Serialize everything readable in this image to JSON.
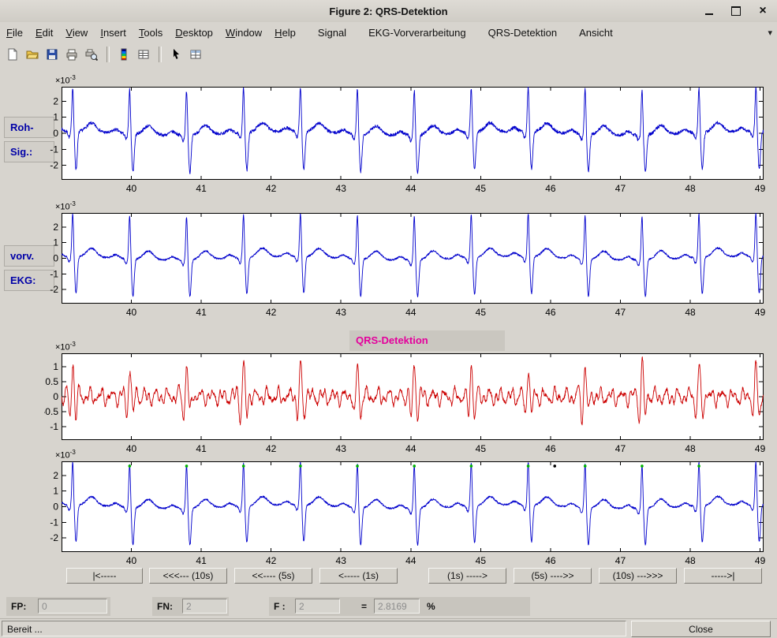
{
  "window": {
    "title": "Figure 2: QRS-Detektion"
  },
  "menu": {
    "items": [
      {
        "label": "File",
        "mnemonic": 0,
        "gap_before": false
      },
      {
        "label": "Edit",
        "mnemonic": 0,
        "gap_before": false
      },
      {
        "label": "View",
        "mnemonic": 0,
        "gap_before": false
      },
      {
        "label": "Insert",
        "mnemonic": 0,
        "gap_before": false
      },
      {
        "label": "Tools",
        "mnemonic": 0,
        "gap_before": false
      },
      {
        "label": "Desktop",
        "mnemonic": 0,
        "gap_before": false
      },
      {
        "label": "Window",
        "mnemonic": 0,
        "gap_before": false
      },
      {
        "label": "Help",
        "mnemonic": 0,
        "gap_before": false
      },
      {
        "label": "Signal",
        "mnemonic": -1,
        "gap_before": true
      },
      {
        "label": "EKG-Vorverarbeitung",
        "mnemonic": -1,
        "gap_before": true
      },
      {
        "label": "QRS-Detektion",
        "mnemonic": -1,
        "gap_before": true
      },
      {
        "label": "Ansicht",
        "mnemonic": -1,
        "gap_before": true
      }
    ]
  },
  "toolbar": {
    "icons": [
      {
        "name": "new-document-icon"
      },
      {
        "name": "open-file-icon"
      },
      {
        "name": "save-figure-icon"
      },
      {
        "name": "print-figure-icon"
      },
      {
        "name": "print-preview-icon"
      },
      {
        "name": "separator"
      },
      {
        "name": "colorbar-icon"
      },
      {
        "name": "data-grid-icon"
      },
      {
        "name": "separator"
      },
      {
        "name": "edit-plot-pointer-icon"
      },
      {
        "name": "property-table-icon"
      }
    ]
  },
  "labels": {
    "raw_line1": "Roh-",
    "raw_line2": "Sig.:",
    "pre_line1": "vorv.",
    "pre_line2": "EKG:",
    "qrs_title": "QRS-Detektion"
  },
  "nav_buttons": [
    {
      "name": "nav-rewind-start-button",
      "label": "|<-----"
    },
    {
      "name": "nav-back-10s-button",
      "label": "<<<--- (10s)"
    },
    {
      "name": "nav-back-5s-button",
      "label": "<<---- (5s)"
    },
    {
      "name": "nav-back-1s-button",
      "label": "<----- (1s)"
    },
    {
      "name": "nav-forward-1s-button",
      "label": "(1s) ----->"
    },
    {
      "name": "nav-forward-5s-button",
      "label": "(5s) ---->>"
    },
    {
      "name": "nav-forward-10s-button",
      "label": "(10s) --->>>"
    },
    {
      "name": "nav-forward-end-button",
      "label": "----->|"
    }
  ],
  "stats": {
    "fp_label": "FP:",
    "fp_value": "0",
    "fn_label": "FN:",
    "fn_value": "2",
    "f_label": "F :",
    "f_value": "2",
    "equals": "=",
    "rate_value": "2.8169",
    "percent_label": "%"
  },
  "statusbar": {
    "text": "Bereit ...",
    "close_label": "Close"
  },
  "chart_data": [
    {
      "type": "line",
      "name": "raw-signal",
      "title": "",
      "color": "#0000cc",
      "x_ticks": [
        40,
        41,
        42,
        43,
        44,
        45,
        46,
        47,
        48,
        49
      ],
      "y_ticks": [
        2,
        1,
        0,
        -1,
        -2
      ],
      "xlim": [
        39.0,
        49.05
      ],
      "ylim": [
        -2.9,
        2.9
      ],
      "y_unit": "1e-3",
      "exp_base": "×10",
      "exp_power": "-3",
      "signal": "ecg",
      "noise": 0.1,
      "seed": 7,
      "beats": [
        39.16,
        39.975,
        40.79,
        41.605,
        42.42,
        43.235,
        44.05,
        44.865,
        45.68,
        46.495,
        47.31,
        48.125,
        48.94
      ]
    },
    {
      "type": "line",
      "name": "preprocessed-ekg",
      "title": "",
      "color": "#0000cc",
      "x_ticks": [
        40,
        41,
        42,
        43,
        44,
        45,
        46,
        47,
        48,
        49
      ],
      "y_ticks": [
        2,
        1,
        0,
        -1,
        -2
      ],
      "xlim": [
        39.0,
        49.05
      ],
      "ylim": [
        -2.9,
        2.9
      ],
      "y_unit": "1e-3",
      "exp_base": "×10",
      "exp_power": "-3",
      "signal": "ecg",
      "noise": 0.06,
      "seed": 19,
      "beats": [
        39.16,
        39.975,
        40.79,
        41.605,
        42.42,
        43.235,
        44.05,
        44.865,
        45.68,
        46.495,
        47.31,
        48.125,
        48.94
      ]
    },
    {
      "type": "line",
      "name": "qrs-filtered-signal",
      "title": "QRS-Detektion",
      "color": "#cc0000",
      "x_ticks": [
        40,
        41,
        42,
        43,
        44,
        45,
        46,
        47,
        48,
        49
      ],
      "y_ticks": [
        1,
        0.5,
        0,
        -0.5,
        -1
      ],
      "xlim": [
        39.0,
        49.05
      ],
      "ylim": [
        -1.45,
        1.45
      ],
      "y_unit": "1e-3",
      "exp_base": "×10",
      "exp_power": "-3",
      "signal": "filtered",
      "noise": 0.12,
      "seed": 33,
      "beats": [
        39.16,
        39.975,
        40.79,
        41.605,
        42.42,
        43.235,
        44.05,
        44.865,
        45.68,
        46.495,
        47.31,
        48.125,
        48.94
      ]
    },
    {
      "type": "line",
      "name": "detection-result",
      "title": "",
      "color": "#0000cc",
      "x_ticks": [
        40,
        41,
        42,
        43,
        44,
        45,
        46,
        47,
        48,
        49
      ],
      "y_ticks": [
        2,
        1,
        0,
        -1,
        -2
      ],
      "xlim": [
        39.0,
        49.05
      ],
      "ylim": [
        -2.9,
        2.9
      ],
      "y_unit": "1e-3",
      "exp_base": "×10",
      "exp_power": "-3",
      "signal": "ecg",
      "noise": 0.06,
      "seed": 19,
      "beats": [
        39.16,
        39.975,
        40.79,
        41.605,
        42.42,
        43.235,
        44.05,
        44.865,
        45.68,
        46.495,
        47.31,
        48.125,
        48.94
      ],
      "markers": [
        {
          "x": 39.975,
          "y": 2.6,
          "color": "#00b400"
        },
        {
          "x": 40.79,
          "y": 2.6,
          "color": "#00b400"
        },
        {
          "x": 41.605,
          "y": 2.6,
          "color": "#00b400"
        },
        {
          "x": 42.42,
          "y": 2.6,
          "color": "#00b400"
        },
        {
          "x": 43.235,
          "y": 2.6,
          "color": "#00b400"
        },
        {
          "x": 44.05,
          "y": 2.6,
          "color": "#00b400"
        },
        {
          "x": 44.865,
          "y": 2.6,
          "color": "#00b400"
        },
        {
          "x": 45.68,
          "y": 2.6,
          "color": "#00b400"
        },
        {
          "x": 46.495,
          "y": 2.6,
          "color": "#00b400"
        },
        {
          "x": 47.31,
          "y": 2.6,
          "color": "#00b400"
        },
        {
          "x": 48.125,
          "y": 2.6,
          "color": "#00b400"
        },
        {
          "x": 46.06,
          "y": 2.6,
          "color": "#000000"
        }
      ]
    }
  ]
}
